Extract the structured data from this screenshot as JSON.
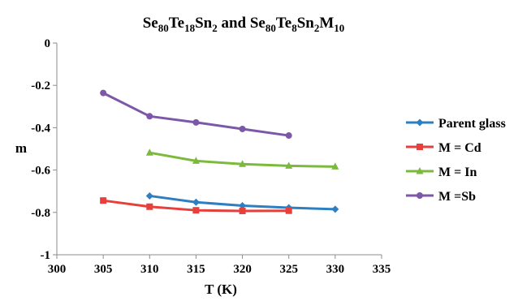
{
  "chart_data": {
    "type": "line",
    "title_parts": [
      {
        "text": "Se",
        "sub": false
      },
      {
        "text": "80",
        "sub": true
      },
      {
        "text": "Te",
        "sub": false
      },
      {
        "text": "18",
        "sub": true
      },
      {
        "text": "Sn",
        "sub": false
      },
      {
        "text": "2",
        "sub": true
      },
      {
        "text": " and Se",
        "sub": false
      },
      {
        "text": "80",
        "sub": true
      },
      {
        "text": "Te",
        "sub": false
      },
      {
        "text": "8",
        "sub": true
      },
      {
        "text": "Sn",
        "sub": false
      },
      {
        "text": "2",
        "sub": true
      },
      {
        "text": "M",
        "sub": false
      },
      {
        "text": "10",
        "sub": true
      }
    ],
    "xlabel": "T (K)",
    "ylabel": "m",
    "xlim": [
      300,
      335
    ],
    "ylim": [
      -1,
      0
    ],
    "xticks": [
      300,
      305,
      310,
      315,
      320,
      325,
      330,
      335
    ],
    "yticks": [
      0,
      -0.2,
      -0.4,
      -0.6,
      -0.8,
      -1
    ],
    "xtick_labels": [
      "300",
      "305",
      "310",
      "315",
      "320",
      "325",
      "330",
      "335"
    ],
    "ytick_labels": [
      "0",
      "-0.2",
      "-0.4",
      "-0.6",
      "-0.8",
      "-1"
    ],
    "grid": false,
    "legend_position": "right",
    "series": [
      {
        "name": "Parent glass",
        "color": "#2e7fc1",
        "marker": "diamond",
        "x": [
          310,
          315,
          320,
          325,
          330
        ],
        "y": [
          -0.722,
          -0.752,
          -0.768,
          -0.778,
          -0.785
        ]
      },
      {
        "name": "M = Cd",
        "color": "#e5403c",
        "marker": "square",
        "x": [
          305,
          310,
          315,
          320,
          325
        ],
        "y": [
          -0.744,
          -0.773,
          -0.79,
          -0.793,
          -0.792
        ]
      },
      {
        "name": "M = In",
        "color": "#7cba3d",
        "marker": "triangle",
        "x": [
          310,
          315,
          320,
          325,
          330
        ],
        "y": [
          -0.518,
          -0.557,
          -0.572,
          -0.58,
          -0.584
        ]
      },
      {
        "name": "M =Sb",
        "color": "#7d57a8",
        "marker": "circle",
        "x": [
          305,
          310,
          315,
          320,
          325
        ],
        "y": [
          -0.236,
          -0.346,
          -0.375,
          -0.406,
          -0.437
        ]
      }
    ]
  }
}
